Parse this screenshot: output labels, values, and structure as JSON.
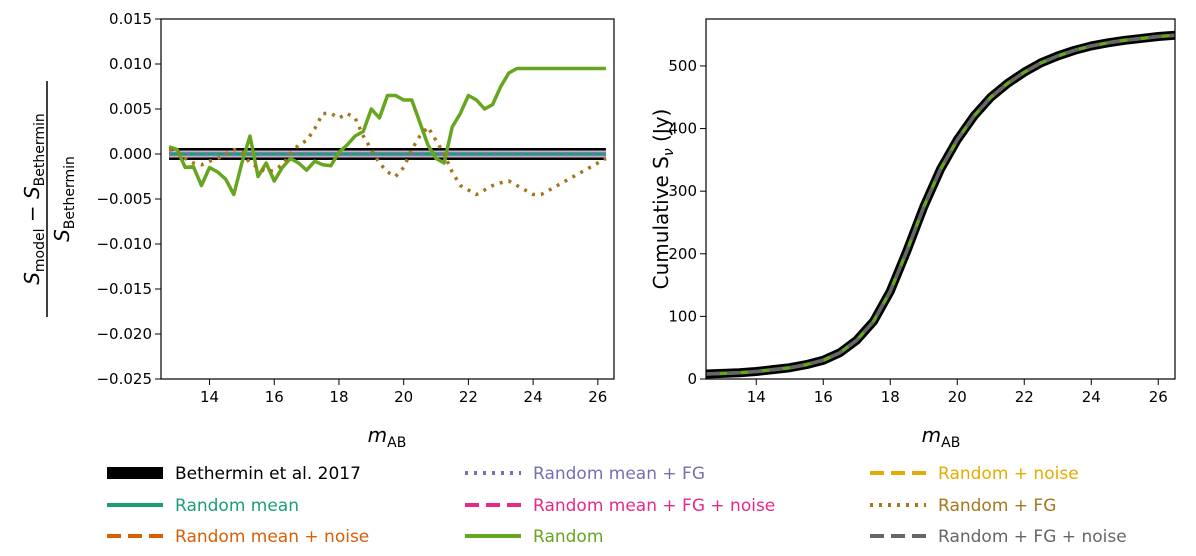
{
  "legend": {
    "entries": [
      {
        "key": "bethermin",
        "label": "Bethermin et al. 2017",
        "color": "#000000",
        "text_color": "#000000",
        "dash": "solid",
        "width": "thick"
      },
      {
        "key": "random_mean",
        "label": "Random mean",
        "color": "#1b9e77",
        "text_color": "#1b9e77",
        "dash": "solid",
        "width": "normal"
      },
      {
        "key": "random_mean_noise",
        "label": "Random mean + noise",
        "color": "#d95f02",
        "text_color": "#d95f02",
        "dash": "dashed",
        "width": "normal"
      },
      {
        "key": "random_mean_fg",
        "label": "Random mean + FG",
        "color": "#7570b3",
        "text_color": "#7570b3",
        "dash": "dotted",
        "width": "normal"
      },
      {
        "key": "random_mean_fg_noise",
        "label": "Random mean + FG + noise",
        "color": "#e7298a",
        "text_color": "#e7298a",
        "dash": "dashed",
        "width": "normal"
      },
      {
        "key": "random",
        "label": "Random",
        "color": "#66a61e",
        "text_color": "#66a61e",
        "dash": "solid",
        "width": "normal"
      },
      {
        "key": "random_noise",
        "label": "Random + noise",
        "color": "#e6ab02",
        "text_color": "#e6ab02",
        "dash": "dashed",
        "width": "normal"
      },
      {
        "key": "random_fg",
        "label": "Random + FG",
        "color": "#a6761d",
        "text_color": "#a6761d",
        "dash": "dotted",
        "width": "normal"
      },
      {
        "key": "random_fg_noise",
        "label": "Random + FG + noise",
        "color": "#666666",
        "text_color": "#666666",
        "dash": "dashed",
        "width": "normal"
      }
    ]
  },
  "chart_data": [
    {
      "type": "line",
      "panel": "left",
      "xlabel_main": "m",
      "xlabel_sub": "AB",
      "ylabel": "(S_model − S_Bethermin) / S_Bethermin",
      "ylabel_num_a": "S",
      "ylabel_num_a_sub": "model",
      "ylabel_num_minus": " − ",
      "ylabel_num_b": "S",
      "ylabel_num_b_sub": "Bethermin",
      "ylabel_den": "S",
      "ylabel_den_sub": "Bethermin",
      "xlim": [
        12.5,
        26.5
      ],
      "ylim": [
        -0.025,
        0.015
      ],
      "xticks": [
        14,
        16,
        18,
        20,
        22,
        24,
        26
      ],
      "yticks": [
        -0.025,
        -0.02,
        -0.015,
        -0.01,
        -0.005,
        0.0,
        0.005,
        0.01,
        0.015
      ],
      "ytick_labels": [
        "−0.025",
        "−0.020",
        "−0.015",
        "−0.010",
        "−0.005",
        "0.000",
        "0.005",
        "0.010",
        "0.015"
      ],
      "x": [
        12.75,
        13.0,
        13.25,
        13.5,
        13.75,
        14.0,
        14.25,
        14.5,
        14.75,
        15.0,
        15.25,
        15.5,
        15.75,
        16.0,
        16.25,
        16.5,
        16.75,
        17.0,
        17.25,
        17.5,
        17.75,
        18.0,
        18.25,
        18.5,
        18.75,
        19.0,
        19.25,
        19.5,
        19.75,
        20.0,
        20.25,
        20.5,
        20.75,
        21.0,
        21.25,
        21.5,
        21.75,
        22.0,
        22.25,
        22.5,
        22.75,
        23.0,
        23.25,
        23.5,
        23.75,
        24.0,
        24.25,
        24.5,
        24.75,
        25.0,
        25.25,
        25.5,
        25.75,
        26.0,
        26.25
      ],
      "series": [
        {
          "key": "bethermin",
          "values": [
            0,
            0,
            0,
            0,
            0,
            0,
            0,
            0,
            0,
            0,
            0,
            0,
            0,
            0,
            0,
            0,
            0,
            0,
            0,
            0,
            0,
            0,
            0,
            0,
            0,
            0,
            0,
            0,
            0,
            0,
            0,
            0,
            0,
            0,
            0,
            0,
            0,
            0,
            0,
            0,
            0,
            0,
            0,
            0,
            0,
            0,
            0,
            0,
            0,
            0,
            0,
            0,
            0,
            0,
            0
          ]
        },
        {
          "key": "random_mean",
          "values": [
            0,
            0,
            0,
            0,
            0,
            0,
            0,
            0,
            0,
            0,
            0,
            0,
            0,
            0,
            0,
            0,
            0,
            0,
            0,
            0,
            0,
            0,
            0,
            0,
            0,
            0,
            0,
            0,
            0,
            0,
            0,
            0,
            0,
            0,
            0,
            0,
            0,
            0,
            0,
            0,
            0,
            0,
            0,
            0,
            0,
            0,
            0,
            0,
            0,
            0,
            0,
            0,
            0,
            0,
            0
          ]
        },
        {
          "key": "random_mean_fg",
          "values": [
            0,
            0,
            0,
            0,
            0,
            0,
            0,
            0,
            0,
            0,
            0,
            0,
            0,
            0,
            0,
            0,
            0,
            0,
            0,
            0,
            0,
            0,
            0,
            0,
            0,
            0,
            0,
            0,
            0,
            0,
            0,
            0,
            0,
            0,
            0,
            0,
            0,
            0,
            0,
            0,
            0,
            0,
            0,
            0,
            0,
            0,
            0,
            0,
            0,
            0,
            0,
            0,
            0,
            0,
            0
          ]
        },
        {
          "key": "random",
          "values": [
            0.0008,
            0.0005,
            -0.0015,
            -0.0014,
            -0.0035,
            -0.0015,
            -0.002,
            -0.0028,
            -0.0045,
            -0.001,
            0.002,
            -0.0025,
            -0.001,
            -0.003,
            -0.0015,
            -0.0005,
            -0.001,
            -0.0018,
            -0.0008,
            -0.0012,
            -0.0013,
            0.0002,
            0.001,
            0.002,
            0.0025,
            0.005,
            0.004,
            0.0065,
            0.0065,
            0.006,
            0.006,
            0.0035,
            0.001,
            -0.0005,
            -0.001,
            0.003,
            0.0045,
            0.0065,
            0.006,
            0.005,
            0.0055,
            0.0075,
            0.009,
            0.0095,
            0.0095,
            0.0095,
            0.0095,
            0.0095,
            0.0095,
            0.0095,
            0.0095,
            0.0095,
            0.0095,
            0.0095,
            0.0095
          ]
        },
        {
          "key": "random_fg",
          "values": [
            0.0005,
            0.0003,
            -0.0005,
            -0.001,
            -0.0012,
            -0.0008,
            -0.0005,
            0,
            0.0005,
            0.0002,
            -0.001,
            -0.0015,
            -0.002,
            -0.0018,
            -0.0012,
            0,
            0.001,
            0.0015,
            0.0028,
            0.0045,
            0.0045,
            0.004,
            0.0045,
            0.004,
            0.002,
            0.0005,
            -0.001,
            -0.002,
            -0.0025,
            -0.0015,
            0.0005,
            0.002,
            0.003,
            0.0015,
            0,
            -0.002,
            -0.0035,
            -0.004,
            -0.0045,
            -0.004,
            -0.0035,
            -0.0032,
            -0.003,
            -0.0035,
            -0.004,
            -0.0045,
            -0.0045,
            -0.004,
            -0.0035,
            -0.003,
            -0.0025,
            -0.002,
            -0.0015,
            -0.001,
            -0.0005
          ]
        }
      ]
    },
    {
      "type": "line",
      "panel": "right",
      "xlabel_main": "m",
      "xlabel_sub": "AB",
      "ylabel_main": "Cumulative  S",
      "ylabel_sub": "ν",
      "ylabel_unit": " (Jy)",
      "xlim": [
        12.5,
        26.5
      ],
      "ylim": [
        0,
        575
      ],
      "xticks": [
        14,
        16,
        18,
        20,
        22,
        24,
        26
      ],
      "yticks": [
        0,
        100,
        200,
        300,
        400,
        500
      ],
      "x": [
        12.5,
        13.0,
        13.5,
        14.0,
        14.5,
        15.0,
        15.5,
        16.0,
        16.5,
        17.0,
        17.5,
        18.0,
        18.5,
        19.0,
        19.5,
        20.0,
        20.5,
        21.0,
        21.5,
        22.0,
        22.5,
        23.0,
        23.5,
        24.0,
        24.5,
        25.0,
        25.5,
        26.0,
        26.5
      ],
      "series": [
        {
          "key": "bethermin",
          "values": [
            8,
            9,
            10,
            12,
            15,
            18,
            23,
            30,
            42,
            62,
            92,
            140,
            205,
            275,
            335,
            382,
            420,
            450,
            472,
            490,
            505,
            516,
            525,
            532,
            537,
            541,
            544,
            547,
            549
          ]
        },
        {
          "key": "random",
          "values": [
            8,
            9,
            10,
            12,
            15,
            18,
            23,
            30,
            42,
            62,
            92,
            140,
            205,
            275,
            335,
            382,
            420,
            450,
            472,
            490,
            505,
            516,
            525,
            532,
            537,
            541,
            544,
            547,
            549
          ]
        },
        {
          "key": "random_fg_noise",
          "values": [
            8,
            9,
            10,
            12,
            15,
            18,
            23,
            30,
            42,
            62,
            92,
            140,
            205,
            275,
            335,
            382,
            420,
            450,
            472,
            490,
            505,
            516,
            525,
            532,
            537,
            541,
            544,
            547,
            549
          ]
        }
      ]
    }
  ]
}
